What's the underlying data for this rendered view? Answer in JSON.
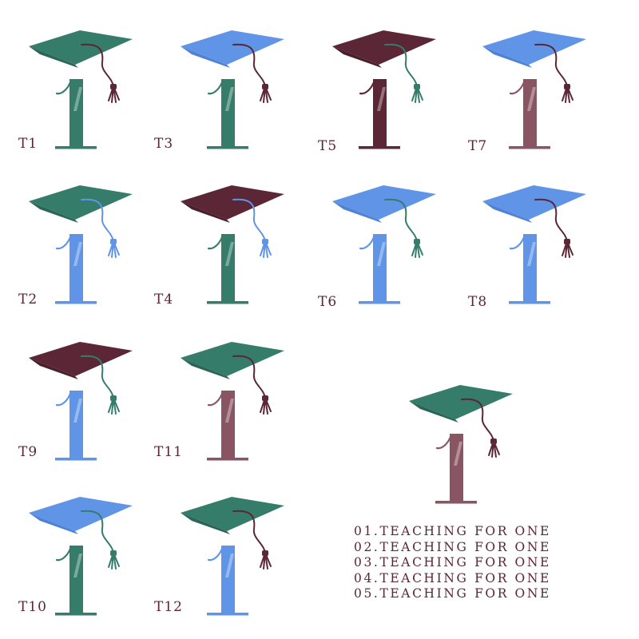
{
  "palette": {
    "green": "#357c6b",
    "green_dark": "#2a6557",
    "blue": "#5f94e6",
    "blue_dark": "#4f82d4",
    "maroon": "#5b2635",
    "maroon_dark": "#4a1e2b",
    "rose": "#8a5563",
    "text": "#5a2634"
  },
  "tiles": [
    {
      "label": "T1",
      "cap": "green",
      "tassel": "maroon",
      "numeral": "green"
    },
    {
      "label": "T3",
      "cap": "blue",
      "tassel": "maroon",
      "numeral": "green"
    },
    {
      "label": "T5",
      "cap": "maroon",
      "tassel": "green",
      "numeral": "maroon"
    },
    {
      "label": "T7",
      "cap": "blue",
      "tassel": "maroon",
      "numeral": "rose"
    },
    {
      "label": "T2",
      "cap": "green",
      "tassel": "blue",
      "numeral": "blue"
    },
    {
      "label": "T4",
      "cap": "maroon",
      "tassel": "blue",
      "numeral": "green"
    },
    {
      "label": "T6",
      "cap": "blue",
      "tassel": "green",
      "numeral": "blue"
    },
    {
      "label": "T8",
      "cap": "blue",
      "tassel": "maroon",
      "numeral": "blue"
    },
    {
      "label": "T9",
      "cap": "maroon",
      "tassel": "green",
      "numeral": "blue"
    },
    {
      "label": "T11",
      "cap": "green",
      "tassel": "maroon",
      "numeral": "rose"
    },
    {
      "label": "T10",
      "cap": "blue",
      "tassel": "green",
      "numeral": "green"
    },
    {
      "label": "T12",
      "cap": "green",
      "tassel": "maroon",
      "numeral": "blue"
    }
  ],
  "featured": {
    "cap": "green",
    "tassel": "maroon",
    "numeral": "rose"
  },
  "taglines": [
    "01.TEACHING FOR ONE",
    "02.TEACHING FOR ONE",
    "03.TEACHING FOR ONE",
    "04.TEACHING FOR ONE",
    "05.TEACHING FOR ONE"
  ]
}
